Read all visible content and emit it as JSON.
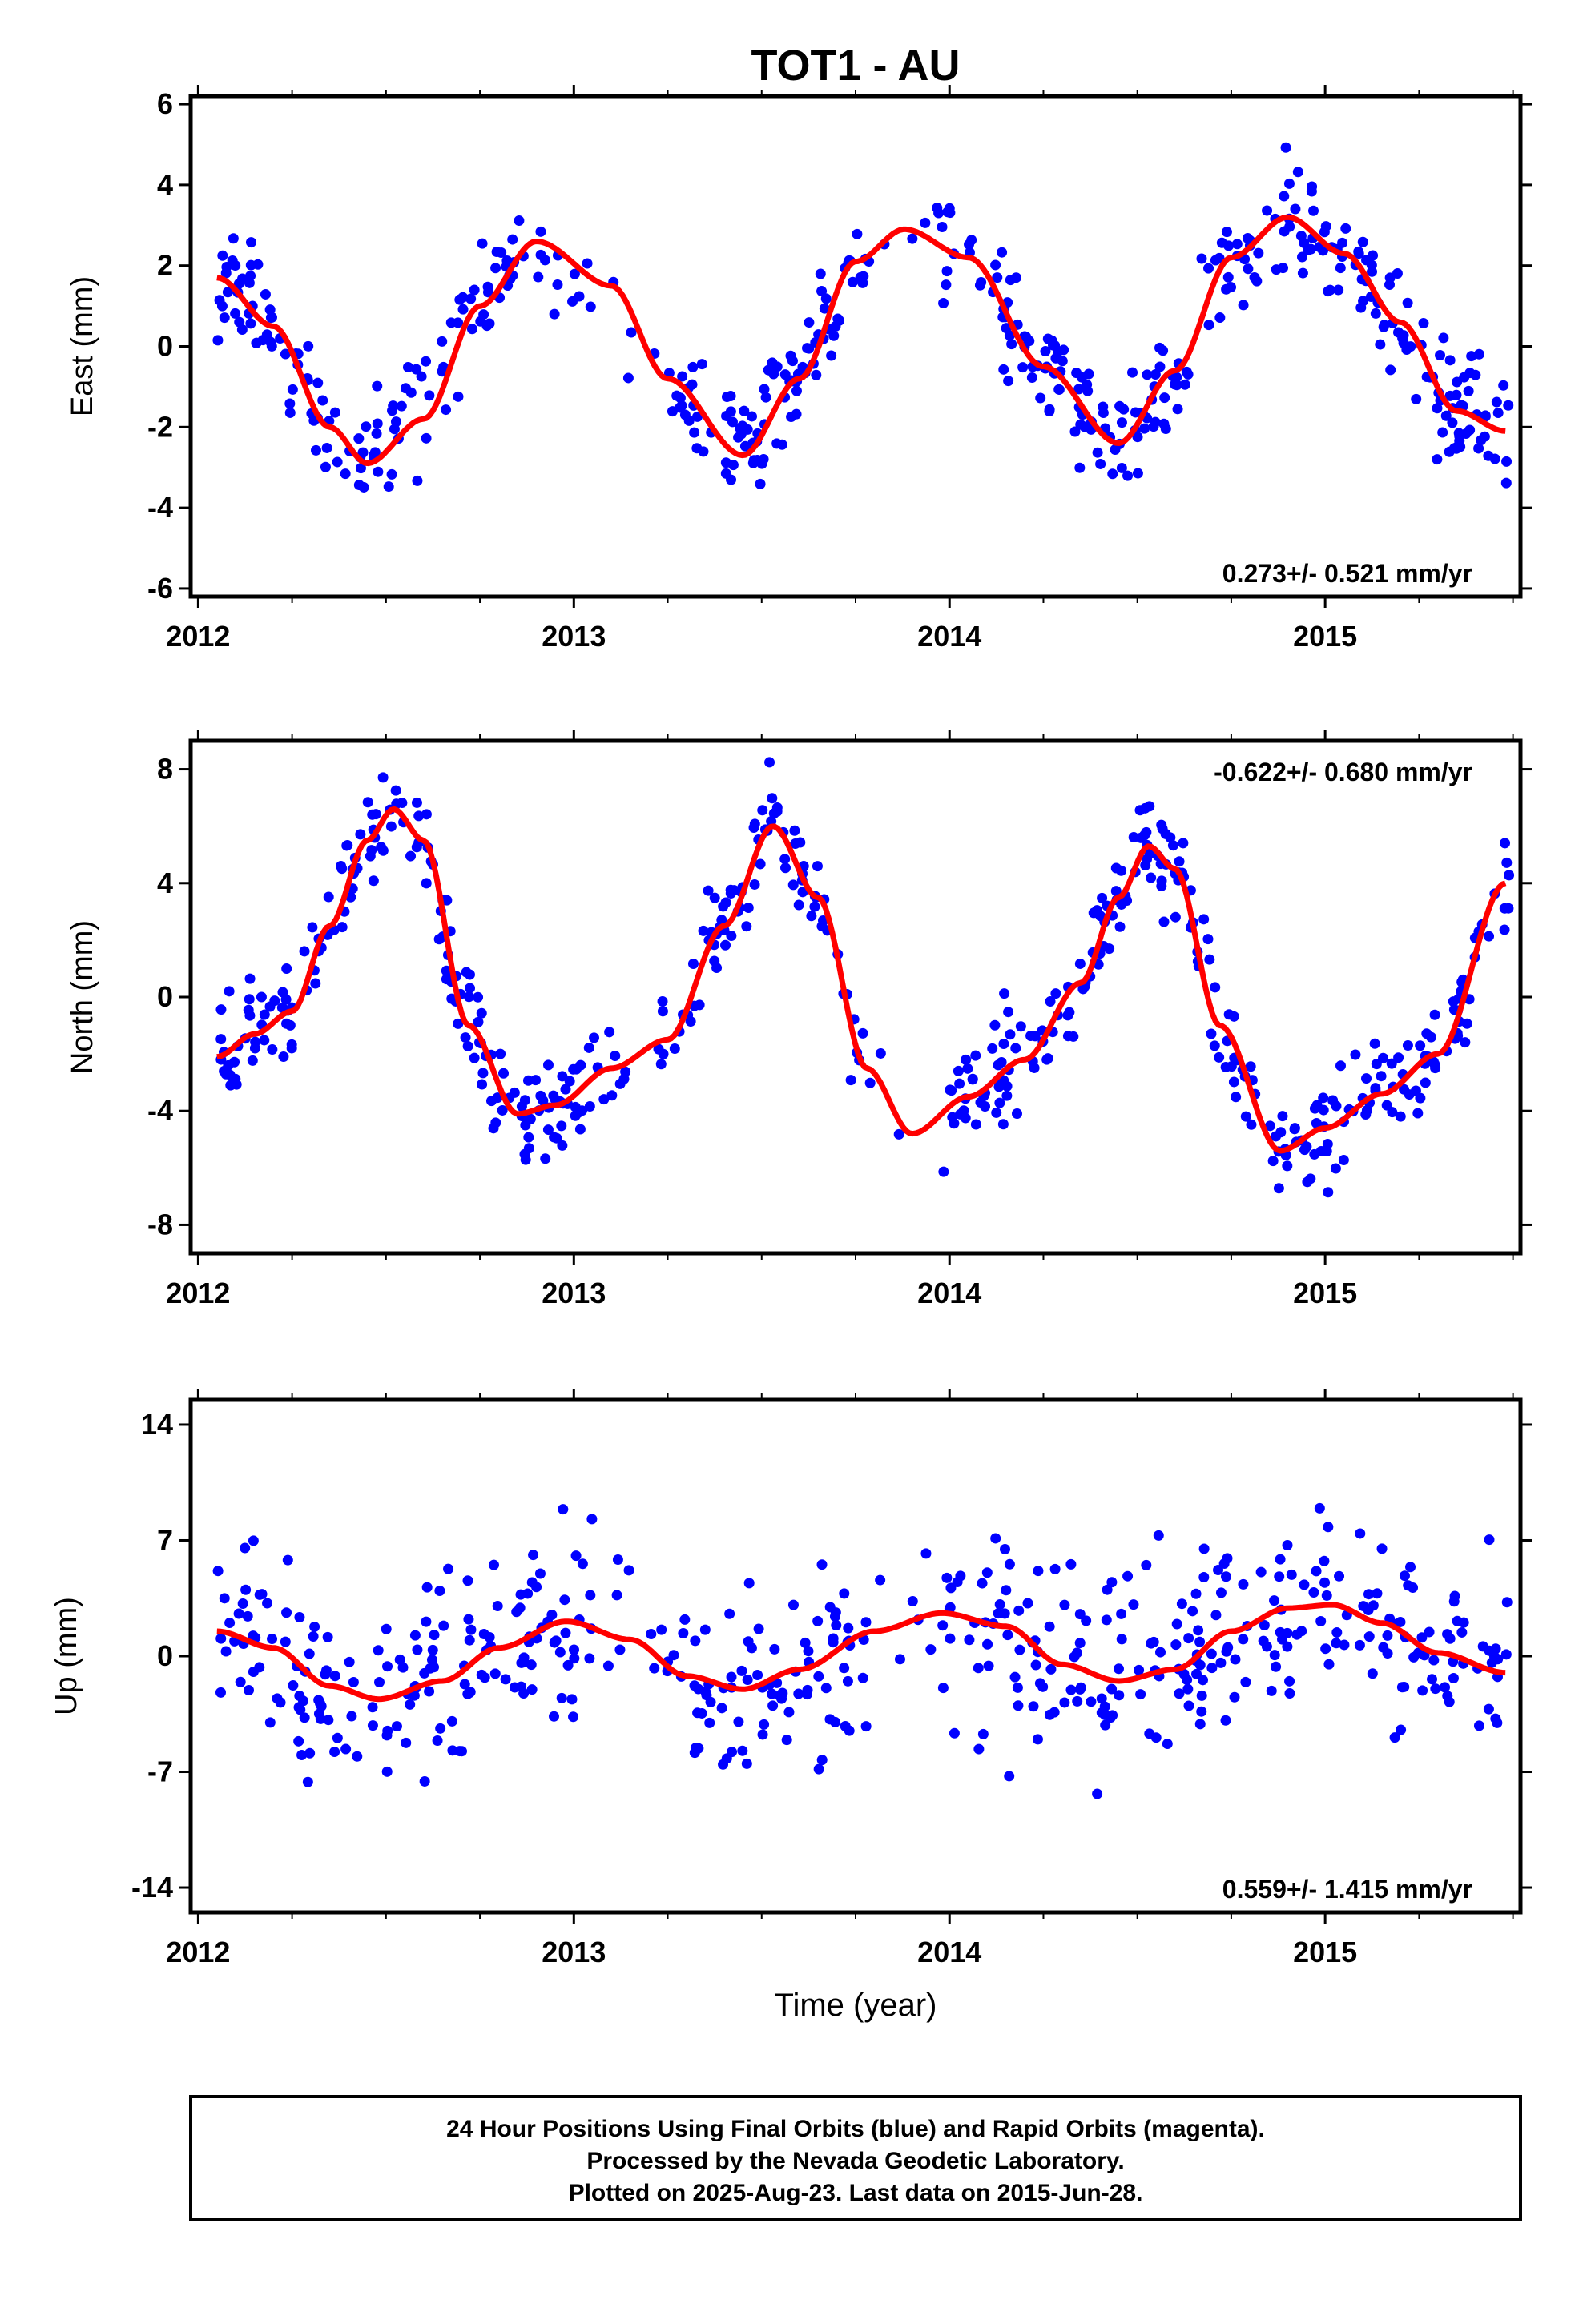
{
  "chart_data": [
    {
      "type": "scatter",
      "title": "TOT1 - AU",
      "ylabel": "East (mm)",
      "xlim": [
        2011.98,
        2015.52
      ],
      "ylim": [
        -6.2,
        6.2
      ],
      "xticks": [
        "2012",
        "2013",
        "2014",
        "2015"
      ],
      "yticks": [
        "-6",
        "-4",
        "-2",
        "0",
        "2",
        "4",
        "6"
      ],
      "rate_label": "0.273+/- 0.521 mm/yr",
      "series": [
        {
          "color": "#0000ff",
          "marker": "dot"
        },
        {
          "color": "#ff0000",
          "marker": "line",
          "x": [
            2012.05,
            2012.2,
            2012.35,
            2012.45,
            2012.6,
            2012.75,
            2012.9,
            2013.1,
            2013.25,
            2013.45,
            2013.6,
            2013.75,
            2013.88,
            2014.05,
            2014.25,
            2014.45,
            2014.6,
            2014.75,
            2014.9,
            2015.05,
            2015.2,
            2015.35,
            2015.48
          ],
          "y": [
            1.7,
            0.5,
            -2.0,
            -2.9,
            -1.8,
            1.0,
            2.6,
            1.5,
            -0.8,
            -2.7,
            -0.8,
            2.1,
            2.9,
            2.2,
            -0.5,
            -2.4,
            -0.6,
            2.2,
            3.2,
            2.3,
            0.6,
            -1.6,
            -2.1
          ]
        }
      ]
    },
    {
      "type": "scatter",
      "ylabel": "North (mm)",
      "xlim": [
        2011.98,
        2015.52
      ],
      "ylim": [
        -9,
        9
      ],
      "xticks": [
        "2012",
        "2013",
        "2014",
        "2015"
      ],
      "yticks": [
        "-8",
        "-4",
        "0",
        "4",
        "8"
      ],
      "rate_label": "-0.622+/- 0.680 mm/yr",
      "series": [
        {
          "color": "#0000ff",
          "marker": "dot"
        },
        {
          "color": "#ff0000",
          "marker": "line",
          "x": [
            2012.05,
            2012.15,
            2012.25,
            2012.35,
            2012.45,
            2012.52,
            2012.6,
            2012.72,
            2012.85,
            2012.95,
            2013.1,
            2013.25,
            2013.4,
            2013.53,
            2013.65,
            2013.78,
            2013.9,
            2014.05,
            2014.2,
            2014.35,
            2014.45,
            2014.53,
            2014.6,
            2014.72,
            2014.88,
            2015.0,
            2015.15,
            2015.3,
            2015.48
          ],
          "y": [
            -2.1,
            -1.3,
            -0.5,
            2.5,
            5.5,
            6.6,
            5.5,
            -1.0,
            -4.1,
            -3.8,
            -2.5,
            -1.5,
            2.5,
            6.0,
            3.5,
            -2.5,
            -4.8,
            -3.5,
            -2.2,
            0.5,
            3.5,
            5.3,
            4.5,
            -1.0,
            -5.4,
            -4.6,
            -3.4,
            -2.0,
            4.0
          ]
        }
      ]
    },
    {
      "type": "scatter",
      "ylabel": "Up (mm)",
      "xlabel": "Time (year)",
      "xlim": [
        2011.98,
        2015.52
      ],
      "ylim": [
        -15.5,
        15.5
      ],
      "xticks": [
        "2012",
        "2013",
        "2014",
        "2015"
      ],
      "yticks": [
        "-14",
        "-7",
        "0",
        "7",
        "14"
      ],
      "rate_label": "0.559+/- 1.415 mm/yr",
      "series": [
        {
          "color": "#0000ff",
          "marker": "dot"
        },
        {
          "color": "#ff0000",
          "marker": "line",
          "x": [
            2012.05,
            2012.2,
            2012.35,
            2012.48,
            2012.65,
            2012.8,
            2012.98,
            2013.15,
            2013.3,
            2013.45,
            2013.6,
            2013.8,
            2013.98,
            2014.15,
            2014.3,
            2014.45,
            2014.6,
            2014.75,
            2014.9,
            2015.02,
            2015.15,
            2015.3,
            2015.48
          ],
          "y": [
            1.5,
            0.5,
            -1.8,
            -2.6,
            -1.5,
            0.5,
            2.1,
            1.0,
            -1.2,
            -2.0,
            -0.8,
            1.5,
            2.6,
            1.8,
            -0.5,
            -1.5,
            -0.8,
            1.5,
            2.9,
            3.1,
            2.0,
            0.2,
            -1.0
          ]
        }
      ]
    }
  ],
  "footer": {
    "line1": "24 Hour Positions Using Final Orbits (blue) and Rapid Orbits (magenta).",
    "line2": "Processed by the Nevada Geodetic Laboratory.",
    "line3": "Plotted on 2025-Aug-23. Last data on 2015-Jun-28."
  }
}
